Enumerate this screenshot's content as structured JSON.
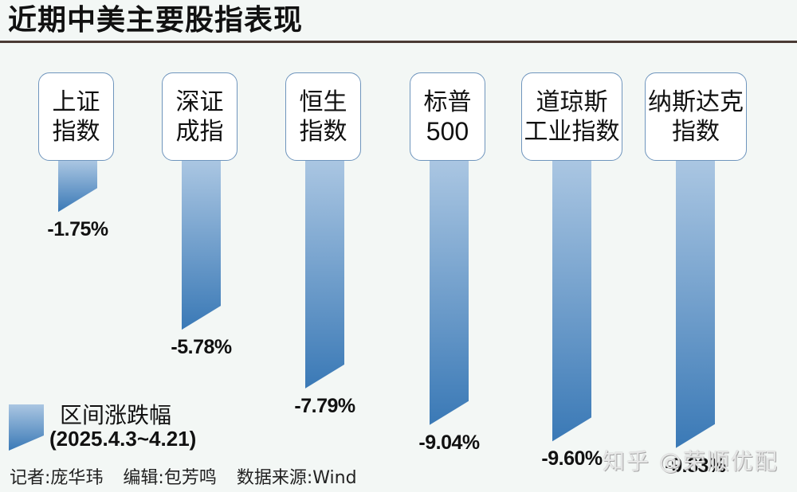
{
  "title": "近期中美主要股指表现",
  "legend": {
    "label": "区间涨跌幅",
    "period": "(2025.4.3~4.21)"
  },
  "credits": {
    "reporter": "记者:庞华玮",
    "editor": "编辑:包芳鸣",
    "source": "数据来源:Wind"
  },
  "watermark": "知乎 @荣顺优配",
  "colors": {
    "bar_top": "#aac6e2",
    "bar_bottom": "#3a79b6",
    "box_border": "#6f95bd",
    "title_rule": "#4a3a34",
    "background": "#f3f7f5"
  },
  "indices": [
    {
      "line1": "上证",
      "line2": "指数",
      "value_label": "-1.75%"
    },
    {
      "line1": "深证",
      "line2": "成指",
      "value_label": "-5.78%"
    },
    {
      "line1": "恒生",
      "line2": "指数",
      "value_label": "-7.79%"
    },
    {
      "line1": "标普",
      "line2": "500",
      "value_label": "-9.04%"
    },
    {
      "line1": "道琼斯",
      "line2": "工业指数",
      "value_label": "-9.60%"
    },
    {
      "line1": "纳斯达克",
      "line2": "指数",
      "value_label": "-9.83%"
    }
  ],
  "chart_data": {
    "type": "bar",
    "title": "近期中美主要股指表现",
    "categories": [
      "上证指数",
      "深证成指",
      "恒生指数",
      "标普500",
      "道琼斯工业指数",
      "纳斯达克指数"
    ],
    "series": [
      {
        "name": "区间涨跌幅 (2025.4.3~4.21)",
        "values": [
          -1.75,
          -5.78,
          -7.79,
          -9.04,
          -9.6,
          -9.83
        ],
        "unit": "%"
      }
    ],
    "xlabel": "",
    "ylabel": "",
    "ylim": [
      -10,
      0
    ],
    "grid": false,
    "legend_position": "bottom-left",
    "orientation": "vertical-downward",
    "data_labels": [
      "-1.75%",
      "-5.78%",
      "-7.79%",
      "-9.04%",
      "-9.60%",
      "-9.83%"
    ]
  }
}
